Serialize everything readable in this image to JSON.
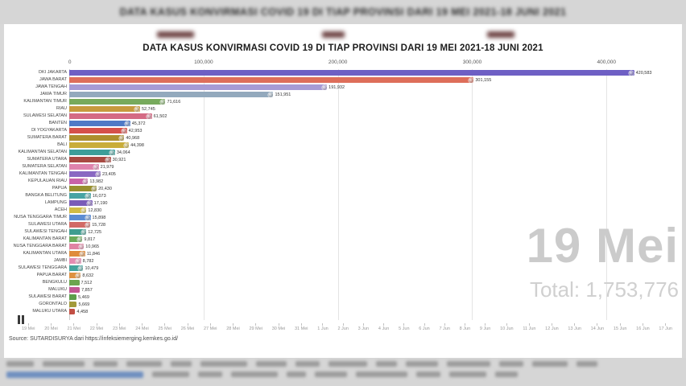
{
  "blurred": {
    "top_title": "DATA KASUS KONVIRMASI COVID 19 DI TIAP PROVINSI DARI 19 MEI 2021-18 JUNI 2021"
  },
  "chart": {
    "title": "DATA KASUS KONVIRMASI COVID 19 DI TIAP PROVINSI DARI 19 MEI 2021-18 JUNI 2021",
    "date_label": "19 Mei",
    "total_label": "Total: 1,753,776",
    "source": "Source: SUTARDISURYA dari https://infeksiemerging.kemkes.go.id/"
  },
  "icons": {
    "pause": "❚❚"
  },
  "chart_data": {
    "type": "bar",
    "orientation": "horizontal",
    "title": "DATA KASUS KONVIRMASI COVID 19 DI TIAP PROVINSI DARI 19 MEI 2021-18 JUNI 2021",
    "frame_date": "19 Mei",
    "total": 1753776,
    "grid": true,
    "legend_position": "none",
    "x_axis": {
      "ticks": [
        "0",
        "100,000",
        "200,000",
        "300,000",
        "400,000"
      ],
      "tick_values": [
        0,
        100000,
        200000,
        300000,
        400000
      ],
      "max": 440000
    },
    "bars": [
      {
        "label": "DKI JAKARTA",
        "value": 420583,
        "display": "420,583",
        "color": "#6e5fc4"
      },
      {
        "label": "JAWA BARAT",
        "value": 301155,
        "display": "301,155",
        "color": "#de6e5a"
      },
      {
        "label": "JAWA TENGAH",
        "value": 191932,
        "display": "191,932",
        "color": "#a79bd4"
      },
      {
        "label": "JAWA TIMUR",
        "value": 151951,
        "display": "151,951",
        "color": "#93a9bd"
      },
      {
        "label": "KALIMANTAN TIMUR",
        "value": 71616,
        "display": "71,616",
        "color": "#77aa5c"
      },
      {
        "label": "RIAU",
        "value": 52745,
        "display": "52,745",
        "color": "#c79a3e"
      },
      {
        "label": "SULAWESI SELATAN",
        "value": 61502,
        "display": "61,502",
        "color": "#d46a84"
      },
      {
        "label": "BANTEN",
        "value": 45372,
        "display": "45,372",
        "color": "#4e79c6"
      },
      {
        "label": "DI YOGYAKARTA",
        "value": 42953,
        "display": "42,953",
        "color": "#d5504a"
      },
      {
        "label": "SUMATERA BARAT",
        "value": 40968,
        "display": "40,968",
        "color": "#ad8f2d"
      },
      {
        "label": "BALI",
        "value": 44398,
        "display": "44,398",
        "color": "#c9ad39"
      },
      {
        "label": "KALIMANTAN SELATAN",
        "value": 34064,
        "display": "34,064",
        "color": "#3d9e99"
      },
      {
        "label": "SUMATERA UTARA",
        "value": 30921,
        "display": "30,921",
        "color": "#a84a42"
      },
      {
        "label": "SUMATERA SELATAN",
        "value": 21979,
        "display": "21,979",
        "color": "#df83ad"
      },
      {
        "label": "KALIMANTAN TENGAH",
        "value": 23405,
        "display": "23,405",
        "color": "#8a68c2"
      },
      {
        "label": "KEPULAUAN RIAU",
        "value": 13982,
        "display": "13,982",
        "color": "#c963a8"
      },
      {
        "label": "PAPUA",
        "value": 20430,
        "display": "20,430",
        "color": "#98902f"
      },
      {
        "label": "BANGKA BELITUNG",
        "value": 16073,
        "display": "16,073",
        "color": "#47a3a3"
      },
      {
        "label": "LAMPUNG",
        "value": 17190,
        "display": "17,190",
        "color": "#7a5cb8"
      },
      {
        "label": "ACEH",
        "value": 12830,
        "display": "12,830",
        "color": "#d2bc45"
      },
      {
        "label": "NUSA TENGGARA TIMUR",
        "value": 15898,
        "display": "15,898",
        "color": "#5c8cd2"
      },
      {
        "label": "SULAWESI UTARA",
        "value": 15728,
        "display": "15,728",
        "color": "#d26a66"
      },
      {
        "label": "SULAWESI TENGAH",
        "value": 12725,
        "display": "12,725",
        "color": "#3f9d90"
      },
      {
        "label": "KALIMANTAN BARAT",
        "value": 9817,
        "display": "9,817",
        "color": "#6cab59"
      },
      {
        "label": "NUSA TENGGARA BARAT",
        "value": 10965,
        "display": "10,965",
        "color": "#e083a3"
      },
      {
        "label": "KALIMANTAN UTARA",
        "value": 11846,
        "display": "11,846",
        "color": "#df8c3c"
      },
      {
        "label": "JAMBI",
        "value": 8782,
        "display": "8,782",
        "color": "#e38bb1"
      },
      {
        "label": "SULAWESI TENGGARA",
        "value": 10479,
        "display": "10,479",
        "color": "#43a39c"
      },
      {
        "label": "PAPUA BARAT",
        "value": 8632,
        "display": "8,632",
        "color": "#de9140"
      },
      {
        "label": "BENGKULU",
        "value": 7512,
        "display": "7,512",
        "color": "#6ca64f"
      },
      {
        "label": "MALUKU",
        "value": 7857,
        "display": "7,857",
        "color": "#c25793"
      },
      {
        "label": "SULAWESI BARAT",
        "value": 5469,
        "display": "5,469",
        "color": "#5b9e4a"
      },
      {
        "label": "GORONTALO",
        "value": 5669,
        "display": "5,669",
        "color": "#a39a3a"
      },
      {
        "label": "MALUKU UTARA",
        "value": 4458,
        "display": "4,458",
        "color": "#c24f44"
      }
    ],
    "timeline_ticks": [
      "19 Mei",
      "20 Mei",
      "21 Mei",
      "22 Mei",
      "23 Mei",
      "24 Mei",
      "25 Mei",
      "26 Mei",
      "27 Mei",
      "28 Mei",
      "29 Mei",
      "30 Mei",
      "31 Mei",
      "1 Jun",
      "2 Jun",
      "3 Jun",
      "4 Jun",
      "5 Jun",
      "6 Jun",
      "7 Jun",
      "8 Jun",
      "9 Jun",
      "10 Jun",
      "11 Jun",
      "12 Jun",
      "13 Jun",
      "14 Jun",
      "15 Jun",
      "16 Jun",
      "17 Jun"
    ]
  }
}
